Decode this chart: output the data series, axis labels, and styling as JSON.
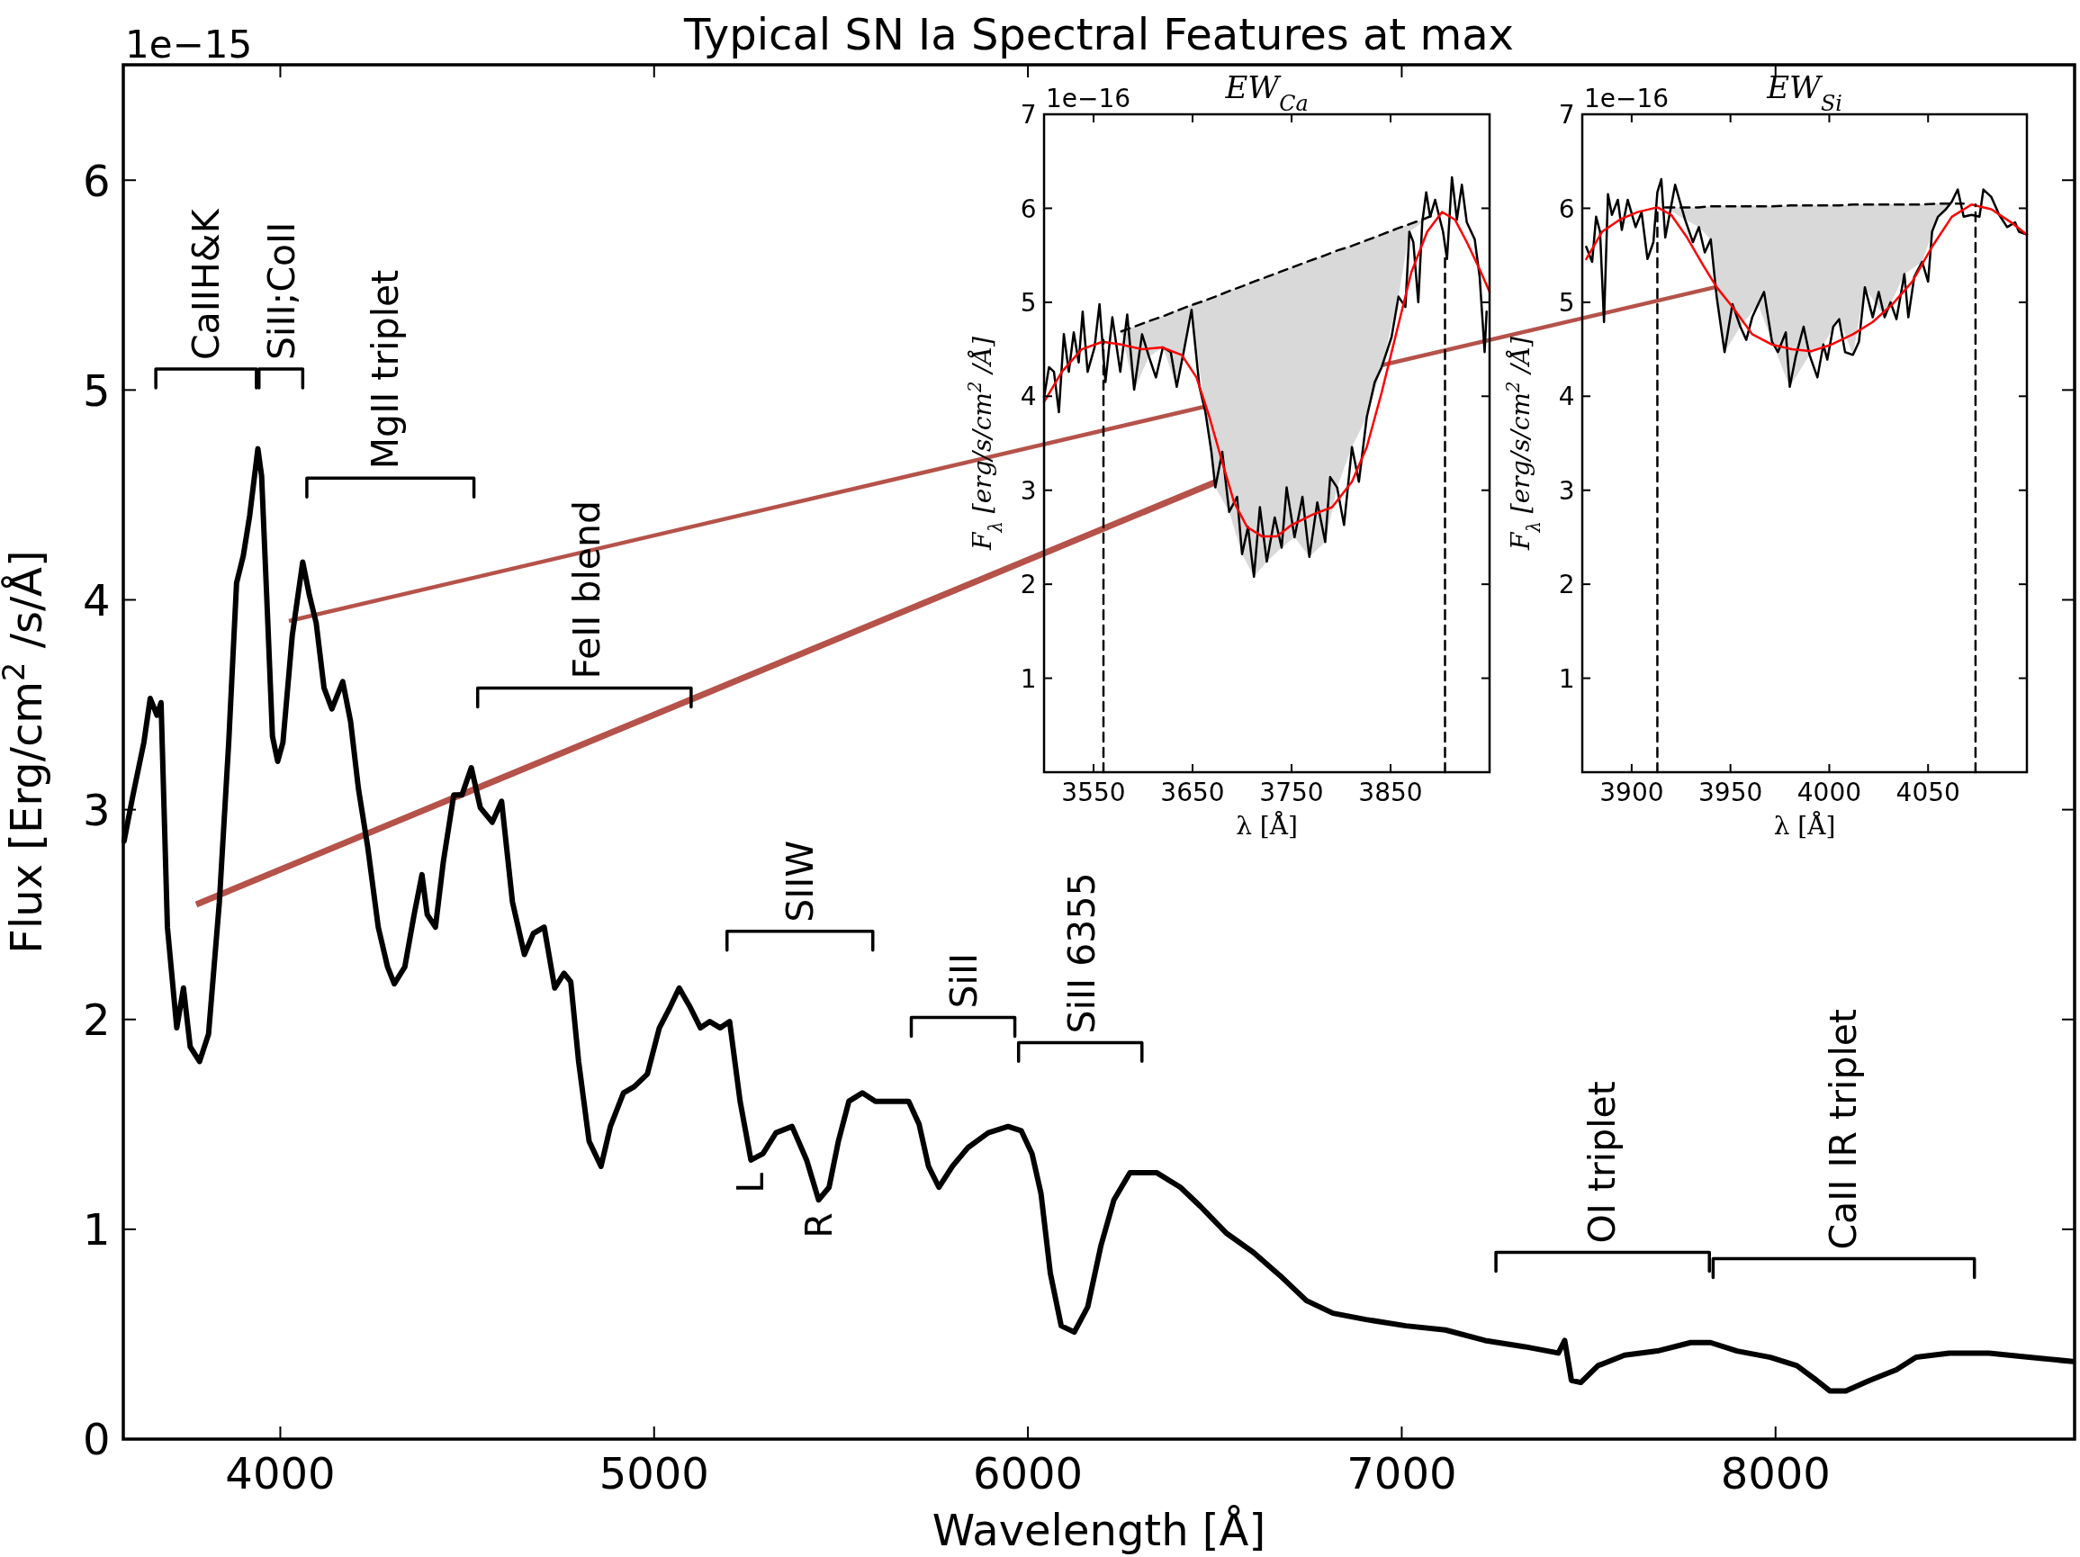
{
  "chart_data": [
    {
      "type": "line",
      "title": "Typical SN Ia Spectral Features at max",
      "xlabel": "Wavelength [Å]",
      "ylabel": "Flux [Erg/cm$^{2}$ /s/Å]",
      "xlim": [
        3580,
        8800
      ],
      "ylim": [
        0,
        6.55
      ],
      "xticks": [
        4000,
        5000,
        6000,
        7000,
        8000
      ],
      "yticks": [
        0,
        1,
        2,
        3,
        4,
        5,
        6
      ],
      "annotations": [
        "1e−15",
        {
          "text": "CaIIH&K",
          "x": 3801,
          "y": 5.1
        },
        {
          "text": "SiII;CoII",
          "x": 4004,
          "y": 5.1
        },
        {
          "text": "MgII triplet",
          "x": 4280,
          "y": 4.58
        },
        {
          "text": "FeII blend",
          "x": 4819,
          "y": 3.58
        },
        {
          "text": "SIIW",
          "x": 5390,
          "y": 2.42
        },
        {
          "text": "SiII",
          "x": 5830,
          "y": 2.01
        },
        {
          "text": "SiII 6355",
          "x": 6145,
          "y": 1.89
        },
        {
          "text": "OI triplet",
          "x": 7535,
          "y": 0.89
        },
        {
          "text": "CaII IR triplet",
          "x": 8181,
          "y": 0.86
        },
        {
          "text": "L",
          "x": 5259,
          "y": 1.33
        },
        {
          "text": "R",
          "x": 5440,
          "y": 1.14
        }
      ],
      "series": [
        {
          "color": "#000000",
          "x": [
            3582,
            3606,
            3635,
            3652,
            3670,
            3681,
            3698,
            3723,
            3741,
            3759,
            3784,
            3808,
            3837,
            3862,
            3883,
            3901,
            3918,
            3940,
            3950,
            3965,
            3979,
            3993,
            4007,
            4032,
            4060,
            4078,
            4096,
            4117,
            4138,
            4167,
            4188,
            4209,
            4234,
            4262,
            4287,
            4305,
            4333,
            4358,
            4379,
            4393,
            4415,
            4436,
            4464,
            4486,
            4511,
            4535,
            4567,
            4592,
            4621,
            4653,
            4677,
            4706,
            4734,
            4759,
            4777,
            4798,
            4826,
            4858,
            4883,
            4918,
            4947,
            4982,
            5014,
            5043,
            5067,
            5096,
            5124,
            5149,
            5177,
            5202,
            5230,
            5259,
            5291,
            5326,
            5369,
            5408,
            5440,
            5468,
            5493,
            5521,
            5557,
            5592,
            5635,
            5681,
            5709,
            5734,
            5762,
            5798,
            5840,
            5894,
            5947,
            5982,
            6011,
            6035,
            6060,
            6089,
            6124,
            6160,
            6195,
            6230,
            6273,
            6308,
            6344,
            6408,
            6461,
            6532,
            6603,
            6674,
            6745,
            6816,
            6904,
            7011,
            7117,
            7223,
            7330,
            7419,
            7436,
            7454,
            7479,
            7525,
            7596,
            7684,
            7773,
            7826,
            7897,
            7986,
            8057,
            8110,
            8145,
            8188,
            8252,
            8323,
            8376,
            8465,
            8571,
            8678,
            8795
          ],
          "values": [
            2.85,
            3.07,
            3.32,
            3.53,
            3.45,
            3.51,
            2.44,
            1.96,
            2.15,
            1.87,
            1.8,
            1.93,
            2.56,
            3.32,
            4.08,
            4.21,
            4.4,
            4.72,
            4.59,
            3.96,
            3.35,
            3.23,
            3.32,
            3.83,
            4.18,
            4.02,
            3.89,
            3.58,
            3.48,
            3.61,
            3.42,
            3.1,
            2.82,
            2.44,
            2.25,
            2.17,
            2.25,
            2.5,
            2.69,
            2.5,
            2.44,
            2.75,
            3.07,
            3.07,
            3.2,
            3.01,
            2.94,
            3.04,
            2.56,
            2.31,
            2.41,
            2.44,
            2.15,
            2.22,
            2.18,
            1.8,
            1.42,
            1.3,
            1.49,
            1.65,
            1.68,
            1.74,
            1.96,
            2.06,
            2.15,
            2.06,
            1.96,
            1.99,
            1.96,
            1.99,
            1.61,
            1.33,
            1.36,
            1.46,
            1.49,
            1.33,
            1.14,
            1.2,
            1.42,
            1.61,
            1.65,
            1.61,
            1.61,
            1.61,
            1.5,
            1.3,
            1.2,
            1.3,
            1.39,
            1.46,
            1.49,
            1.47,
            1.36,
            1.17,
            0.79,
            0.54,
            0.51,
            0.63,
            0.92,
            1.14,
            1.27,
            1.27,
            1.27,
            1.2,
            1.11,
            0.98,
            0.89,
            0.78,
            0.66,
            0.6,
            0.57,
            0.54,
            0.52,
            0.47,
            0.44,
            0.41,
            0.47,
            0.28,
            0.27,
            0.35,
            0.4,
            0.42,
            0.46,
            0.46,
            0.42,
            0.39,
            0.35,
            0.28,
            0.23,
            0.23,
            0.28,
            0.33,
            0.39,
            0.41,
            0.41,
            0.39,
            0.37
          ]
        },
        {
          "color": "#000000",
          "x": [
            3667,
            3667,
            3936,
            3936
          ],
          "values": [
            5.01,
            5.1,
            5.1,
            5.01
          ]
        },
        {
          "color": "#000000",
          "x": [
            3943,
            3943,
            4060,
            4060
          ],
          "values": [
            5.01,
            5.1,
            5.1,
            5.01
          ]
        },
        {
          "color": "#000000",
          "x": [
            4071,
            4071,
            4518,
            4518
          ],
          "values": [
            4.49,
            4.58,
            4.58,
            4.49
          ]
        },
        {
          "color": "#000000",
          "x": [
            4528,
            4528,
            5099,
            5099
          ],
          "values": [
            3.49,
            3.58,
            3.58,
            3.49
          ]
        },
        {
          "color": "#000000",
          "x": [
            5195,
            5195,
            5585,
            5585
          ],
          "values": [
            2.33,
            2.42,
            2.42,
            2.33
          ]
        },
        {
          "color": "#000000",
          "x": [
            5688,
            5688,
            5965,
            5965
          ],
          "values": [
            1.92,
            2.01,
            2.01,
            1.92
          ]
        },
        {
          "color": "#000000",
          "x": [
            5975,
            5975,
            6305,
            6305
          ],
          "values": [
            1.8,
            1.89,
            1.89,
            1.8
          ]
        },
        {
          "color": "#000000",
          "x": [
            7252,
            7252,
            7823,
            7823
          ],
          "values": [
            0.8,
            0.89,
            0.89,
            0.8
          ]
        },
        {
          "color": "#000000",
          "x": [
            7833,
            7833,
            8532,
            8532
          ],
          "values": [
            0.77,
            0.86,
            0.86,
            0.77
          ]
        }
      ]
    },
    {
      "type": "line",
      "title": "EW$_{Ca}$",
      "xlabel": "λ [Å]",
      "ylabel": "F$_{λ}$ [erg/s/cm$^{2}$ /Å]",
      "xlim": [
        3500,
        3950
      ],
      "ylim": [
        0,
        7
      ],
      "xticks": [
        3550,
        3650,
        3750,
        3850
      ],
      "yticks": [
        1,
        2,
        3,
        4,
        5,
        6,
        7
      ],
      "annotations": [
        "1e−16"
      ],
      "series": [
        {
          "color": "#000000",
          "line_style": "dashed",
          "x": [
            3578,
            3591,
            3606,
            3620,
            3634,
            3649,
            3663,
            3673,
            3687,
            3700,
            3712,
            3725,
            3740,
            3753,
            3768,
            3784,
            3796,
            3811,
            3826,
            3841,
            3858,
            3869,
            3882,
            3894
          ],
          "values": [
            4.69,
            4.74,
            4.8,
            4.85,
            4.91,
            4.97,
            5.02,
            5.06,
            5.12,
            5.17,
            5.22,
            5.27,
            5.33,
            5.38,
            5.44,
            5.5,
            5.55,
            5.6,
            5.66,
            5.72,
            5.79,
            5.83,
            5.88,
            5.93
          ],
          "lower": [
            4.69,
            4.07,
            4.42,
            4.52,
            4.1,
            4.92,
            3.83,
            3.03,
            2.77,
            2.32,
            2.08,
            2.24,
            2.39,
            2.5,
            2.29,
            2.45,
            3.03,
            3.46,
            3.78,
            4.31,
            5.06,
            5.75,
            5.85,
            5.93
          ],
          "upper": [
            4.69,
            4.74,
            4.8,
            4.85,
            4.91,
            4.97,
            5.02,
            5.06,
            5.12,
            5.17,
            5.22,
            5.27,
            5.33,
            5.38,
            5.44,
            5.5,
            5.55,
            5.6,
            5.66,
            5.72,
            5.79,
            5.83,
            5.88,
            5.93
          ]
        },
        {
          "color": "#000000",
          "x": [
            3500,
            3505,
            3510,
            3515,
            3520,
            3525,
            3530,
            3535,
            3539,
            3544,
            3551,
            3556,
            3562,
            3569,
            3577,
            3584,
            3591,
            3599,
            3606,
            3613,
            3620,
            3628,
            3634,
            3641,
            3649,
            3657,
            3663,
            3669,
            3673,
            3680,
            3687,
            3695,
            3700,
            3706,
            3712,
            3718,
            3725,
            3733,
            3740,
            3745,
            3753,
            3761,
            3768,
            3776,
            3784,
            3789,
            3796,
            3803,
            3811,
            3818,
            3826,
            3834,
            3841,
            3851,
            3858,
            3865,
            3869,
            3873,
            3878,
            3882,
            3886,
            3890,
            3895,
            3903,
            3907,
            3912,
            3917,
            3922,
            3927,
            3935,
            3940,
            3945,
            3947
          ],
          "values": [
            3.99,
            4.31,
            4.26,
            3.83,
            4.66,
            4.26,
            4.68,
            4.36,
            4.9,
            4.26,
            4.52,
            4.98,
            4.15,
            4.84,
            4.26,
            4.87,
            4.07,
            4.66,
            4.42,
            4.2,
            4.52,
            4.47,
            4.1,
            4.47,
            4.92,
            4.1,
            3.83,
            3.41,
            3.03,
            3.41,
            2.77,
            2.93,
            2.32,
            2.61,
            2.08,
            2.82,
            2.24,
            2.71,
            2.39,
            3.03,
            2.5,
            2.93,
            2.29,
            2.87,
            2.45,
            3.14,
            3.03,
            2.63,
            3.46,
            3.09,
            3.78,
            4.15,
            4.31,
            4.63,
            5.06,
            4.95,
            5.75,
            5.64,
            5.0,
            5.85,
            6.17,
            5.91,
            6.09,
            5.75,
            5.46,
            6.33,
            5.88,
            6.25,
            5.85,
            5.67,
            5.27,
            4.47,
            4.9
          ]
        },
        {
          "color": "#ff0000",
          "x": [
            3500,
            3518,
            3538,
            3559,
            3578,
            3599,
            3619,
            3639,
            3654,
            3667,
            3680,
            3692,
            3705,
            3720,
            3735,
            3750,
            3771,
            3791,
            3811,
            3826,
            3841,
            3856,
            3871,
            3887,
            3902,
            3915,
            3927,
            3940,
            3950
          ],
          "values": [
            3.94,
            4.26,
            4.5,
            4.58,
            4.55,
            4.5,
            4.52,
            4.44,
            4.2,
            3.78,
            3.3,
            2.87,
            2.61,
            2.51,
            2.51,
            2.63,
            2.74,
            2.82,
            3.09,
            3.46,
            4.04,
            4.68,
            5.32,
            5.75,
            5.96,
            5.88,
            5.64,
            5.35,
            5.11
          ]
        },
        {
          "color": "#000000",
          "line_style": "dashed",
          "x": [
            3560,
            3560
          ],
          "values": [
            0,
            4.6
          ]
        },
        {
          "color": "#000000",
          "line_style": "dashed",
          "x": [
            3905,
            3905
          ],
          "values": [
            0,
            5.5
          ]
        }
      ]
    },
    {
      "type": "line",
      "title": "EW$_{Si}$",
      "xlabel": "λ [Å]",
      "ylabel": "F$_{λ}$ [erg/s/cm$^{2}$ /Å]",
      "xlim": [
        3875,
        4100
      ],
      "ylim": [
        0,
        7
      ],
      "xticks": [
        3900,
        3950,
        4000,
        4050
      ],
      "yticks": [
        1,
        2,
        3,
        4,
        5,
        6,
        7
      ],
      "annotations": [
        "1e−16"
      ],
      "series": [
        {
          "color": "#000000",
          "line_style": "dashed",
          "x": [
            3917,
            3927,
            3934,
            3940,
            3947,
            3955,
            3964,
            3971,
            3980,
            3990,
            3997,
            4005,
            4012,
            4018,
            4028,
            4038,
            4047,
            4055,
            4062,
            4068
          ],
          "values": [
            6.01,
            6.01,
            6.01,
            6.02,
            6.02,
            6.02,
            6.02,
            6.02,
            6.03,
            6.03,
            6.03,
            6.03,
            6.04,
            6.04,
            6.04,
            6.04,
            6.04,
            6.05,
            6.05,
            6.05
          ],
          "lower": [
            6.01,
            5.88,
            5.8,
            5.67,
            4.47,
            4.74,
            4.98,
            4.58,
            4.1,
            4.44,
            4.55,
            4.82,
            4.44,
            5.16,
            4.84,
            5.3,
            5.43,
            5.91,
            6.05,
            6.05
          ],
          "upper": [
            6.01,
            6.01,
            6.01,
            6.02,
            6.02,
            6.02,
            6.02,
            6.02,
            6.03,
            6.03,
            6.03,
            6.03,
            6.04,
            6.04,
            6.04,
            6.04,
            6.04,
            6.05,
            6.05,
            6.05
          ]
        },
        {
          "color": "#000000",
          "x": [
            3877,
            3880,
            3882,
            3884,
            3886,
            3888,
            3890,
            3893,
            3895,
            3898,
            3902,
            3905,
            3908,
            3911,
            3913,
            3915,
            3917,
            3922,
            3927,
            3931,
            3934,
            3937,
            3940,
            3943,
            3947,
            3951,
            3955,
            3958,
            3961,
            3964,
            3967,
            3971,
            3974,
            3978,
            3980,
            3983,
            3987,
            3990,
            3994,
            3997,
            3999,
            4002,
            4005,
            4008,
            4012,
            4015,
            4018,
            4022,
            4025,
            4028,
            4031,
            4034,
            4038,
            4040,
            4043,
            4047,
            4050,
            4052,
            4055,
            4059,
            4062,
            4065,
            4068,
            4072,
            4076,
            4078,
            4082,
            4086,
            4090,
            4094,
            4096,
            4100
          ],
          "values": [
            5.59,
            5.43,
            5.91,
            5.75,
            4.79,
            6.15,
            5.93,
            6.09,
            5.77,
            6.09,
            5.8,
            5.96,
            5.46,
            5.64,
            6.17,
            6.31,
            5.69,
            6.25,
            5.88,
            5.64,
            5.8,
            5.53,
            5.67,
            5.06,
            4.47,
            4.98,
            4.74,
            4.6,
            4.84,
            4.98,
            5.11,
            4.58,
            4.47,
            4.68,
            4.1,
            4.42,
            4.74,
            4.44,
            4.2,
            4.55,
            4.39,
            4.74,
            4.82,
            4.47,
            4.44,
            4.58,
            5.16,
            4.84,
            5.11,
            4.84,
            5.0,
            4.82,
            5.3,
            4.84,
            5.27,
            5.43,
            5.22,
            5.75,
            5.91,
            5.99,
            6.07,
            6.2,
            5.91,
            5.93,
            5.91,
            6.2,
            6.12,
            5.93,
            5.8,
            5.85,
            5.75,
            5.72
          ]
        },
        {
          "color": "#ff0000",
          "x": [
            3877,
            3885,
            3894,
            3903,
            3913,
            3920,
            3928,
            3936,
            3943,
            3951,
            3961,
            3971,
            3981,
            3991,
            4001,
            4012,
            4022,
            4032,
            4042,
            4052,
            4062,
            4072,
            4082,
            4092,
            4100
          ],
          "values": [
            5.46,
            5.75,
            5.88,
            5.96,
            6.01,
            5.93,
            5.69,
            5.4,
            5.16,
            4.95,
            4.66,
            4.55,
            4.5,
            4.48,
            4.55,
            4.66,
            4.79,
            4.98,
            5.22,
            5.59,
            5.91,
            6.04,
            5.99,
            5.85,
            5.72
          ]
        },
        {
          "color": "#000000",
          "line_style": "dashed",
          "x": [
            3913,
            3913
          ],
          "values": [
            0,
            6.0
          ]
        },
        {
          "color": "#000000",
          "line_style": "dashed",
          "x": [
            4074,
            4074
          ],
          "values": [
            0,
            6.04
          ]
        }
      ]
    }
  ]
}
